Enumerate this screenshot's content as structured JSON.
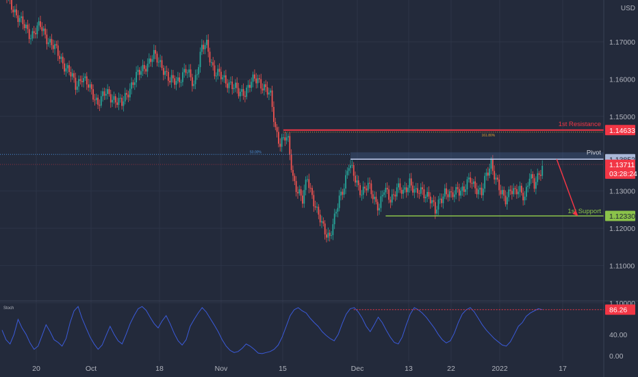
{
  "colors": {
    "background": "#232a3b",
    "grid": "#2c3447",
    "axis_text": "#b2b5be",
    "up_candle": "#26a69a",
    "down_candle": "#ef5350",
    "resistance": "#f23645",
    "pivot": "#c5d2f5",
    "support": "#8bc34a",
    "stoch": "#3b5bdb",
    "current_price": "#f23645"
  },
  "chart_data": {
    "type": "candlestick",
    "instrument_unit": "USD",
    "x_tick_labels": [
      "20",
      "Oct",
      "18",
      "Nov",
      "15",
      "Dec",
      "13",
      "22",
      "2022",
      "17"
    ],
    "y_tick_labels": [
      "1.17000",
      "1.16000",
      "1.15000",
      "1.13000",
      "1.12000",
      "1.11000",
      "1.10000"
    ],
    "ylim": [
      1.095,
      1.185
    ],
    "price_path": [
      [
        0,
        1.184
      ],
      [
        6,
        1.18
      ],
      [
        12,
        1.175
      ],
      [
        18,
        1.172
      ],
      [
        24,
        1.174
      ],
      [
        30,
        1.17
      ],
      [
        36,
        1.166
      ],
      [
        42,
        1.162
      ],
      [
        46,
        1.158
      ],
      [
        50,
        1.161
      ],
      [
        55,
        1.157
      ],
      [
        60,
        1.154
      ],
      [
        65,
        1.156
      ],
      [
        70,
        1.155
      ],
      [
        75,
        1.153
      ],
      [
        80,
        1.158
      ],
      [
        85,
        1.161
      ],
      [
        90,
        1.164
      ],
      [
        95,
        1.166
      ],
      [
        100,
        1.164
      ],
      [
        105,
        1.159
      ],
      [
        110,
        1.16
      ],
      [
        115,
        1.162
      ],
      [
        120,
        1.159
      ],
      [
        125,
        1.168
      ],
      [
        128,
        1.169
      ],
      [
        133,
        1.162
      ],
      [
        138,
        1.16
      ],
      [
        143,
        1.159
      ],
      [
        148,
        1.156
      ],
      [
        152,
        1.157
      ],
      [
        156,
        1.159
      ],
      [
        160,
        1.16
      ],
      [
        164,
        1.158
      ],
      [
        168,
        1.155
      ],
      [
        171,
        1.147
      ],
      [
        174,
        1.143
      ],
      [
        177,
        1.144
      ],
      [
        179,
        1.143
      ],
      [
        182,
        1.134
      ],
      [
        185,
        1.13
      ],
      [
        188,
        1.127
      ],
      [
        191,
        1.134
      ],
      [
        194,
        1.129
      ],
      [
        197,
        1.124
      ],
      [
        200,
        1.121
      ],
      [
        203,
        1.119
      ],
      [
        205,
        1.118
      ],
      [
        208,
        1.122
      ],
      [
        211,
        1.128
      ],
      [
        214,
        1.132
      ],
      [
        217,
        1.137
      ],
      [
        221,
        1.133
      ],
      [
        225,
        1.13
      ],
      [
        229,
        1.131
      ],
      [
        233,
        1.128
      ],
      [
        236,
        1.126
      ],
      [
        239,
        1.13
      ],
      [
        243,
        1.128
      ],
      [
        247,
        1.131
      ],
      [
        251,
        1.129
      ],
      [
        255,
        1.133
      ],
      [
        259,
        1.129
      ],
      [
        263,
        1.13
      ],
      [
        267,
        1.129
      ],
      [
        271,
        1.124
      ],
      [
        274,
        1.128
      ],
      [
        277,
        1.13
      ],
      [
        281,
        1.128
      ],
      [
        285,
        1.131
      ],
      [
        289,
        1.13
      ],
      [
        293,
        1.133
      ],
      [
        297,
        1.131
      ],
      [
        300,
        1.129
      ],
      [
        303,
        1.134
      ],
      [
        306,
        1.138
      ],
      [
        309,
        1.133
      ],
      [
        312,
        1.129
      ],
      [
        315,
        1.128
      ],
      [
        318,
        1.131
      ],
      [
        321,
        1.129
      ],
      [
        324,
        1.13
      ],
      [
        327,
        1.129
      ],
      [
        330,
        1.134
      ],
      [
        333,
        1.131
      ],
      [
        336,
        1.135
      ],
      [
        338,
        1.137
      ]
    ],
    "levels": [
      {
        "name": "1st Resistance",
        "value": 1.14633,
        "label": "1.14633",
        "fib": "161.80%"
      },
      {
        "name": "Pivot",
        "value": 1.13852,
        "label": "1.13852",
        "fib": "50.00%"
      },
      {
        "name": "1st Support",
        "value": 1.1233,
        "label": "1.12330"
      }
    ],
    "current_price": {
      "value": 1.13711,
      "label": "1.13711",
      "countdown": "03:28:24"
    },
    "projection": {
      "from": 1.1385,
      "to": 1.1233
    },
    "stochastic": {
      "name": "Stoch",
      "ylim": [
        0,
        100
      ],
      "ticks": [
        "40.00",
        "0.00"
      ],
      "level": 86.26,
      "level_label": "86.26",
      "values": [
        48,
        30,
        22,
        40,
        68,
        52,
        40,
        24,
        12,
        18,
        38,
        58,
        45,
        30,
        25,
        18,
        32,
        62,
        84,
        92,
        70,
        52,
        35,
        22,
        12,
        20,
        38,
        55,
        40,
        28,
        22,
        40,
        60,
        75,
        88,
        92,
        85,
        72,
        60,
        52,
        65,
        75,
        60,
        42,
        28,
        20,
        30,
        55,
        68,
        80,
        90,
        82,
        70,
        58,
        45,
        30,
        18,
        10,
        6,
        8,
        14,
        22,
        18,
        12,
        5,
        4,
        6,
        8,
        12,
        20,
        35,
        55,
        75,
        86,
        90,
        84,
        80,
        70,
        62,
        55,
        45,
        38,
        32,
        28,
        40,
        60,
        78,
        88,
        90,
        82,
        70,
        55,
        45,
        58,
        72,
        62,
        48,
        35,
        25,
        22,
        35,
        58,
        78,
        90,
        86,
        80,
        72,
        62,
        52,
        40,
        30,
        24,
        28,
        42,
        62,
        78,
        86,
        90,
        82,
        70,
        58,
        48,
        40,
        32,
        26,
        20,
        18,
        26,
        40,
        55,
        62,
        74,
        80,
        84,
        88,
        86.26
      ]
    }
  }
}
